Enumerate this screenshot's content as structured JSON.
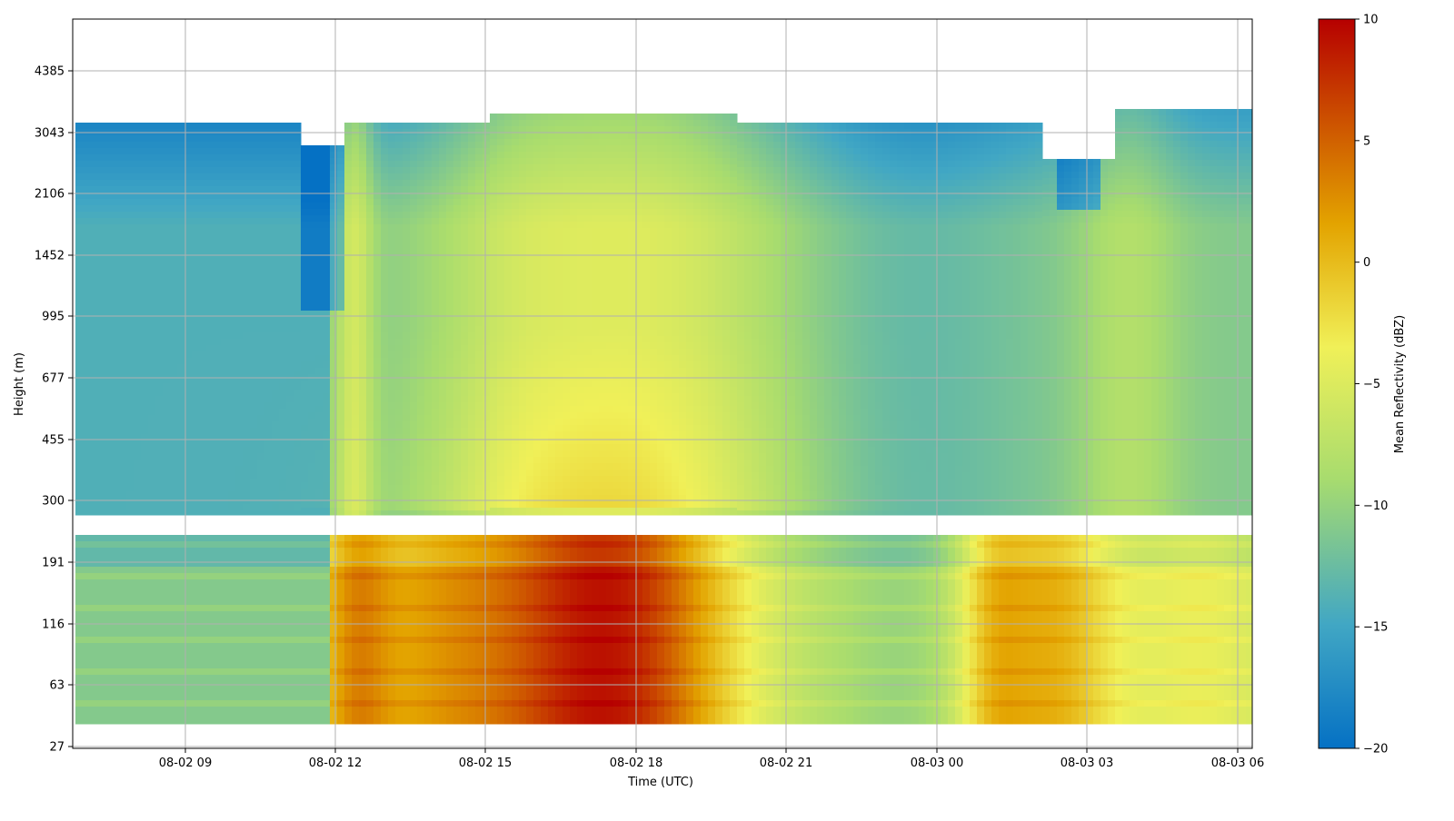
{
  "chart_data": {
    "type": "heatmap",
    "xlabel": "Time (UTC)",
    "ylabel": "Height (m)",
    "x_tick_labels": [
      "08-02 09",
      "08-02 12",
      "08-02 15",
      "08-02 18",
      "08-02 21",
      "08-03 00",
      "08-03 03",
      "08-03 06"
    ],
    "y_tick_labels": [
      "27",
      "63",
      "116",
      "191",
      "300",
      "455",
      "677",
      "995",
      "1452",
      "2106",
      "3043",
      "4385"
    ],
    "x_range": [
      "08-02 06:48",
      "08-03 06:15"
    ],
    "y_range_m": [
      27,
      6000
    ],
    "y_scale": "nonlinear (labelled levels equally spaced)",
    "grid": true,
    "colorbar": {
      "label": "Mean Reflectivity (dBZ)",
      "ticks": [
        "10",
        "5",
        "0",
        "−5",
        "−10",
        "−15",
        "−20"
      ],
      "range_dbz": [
        -20,
        10
      ],
      "colors": [
        "#0571c4",
        "#41a7c4",
        "#a8dc6e",
        "#f0f058",
        "#e3a300",
        "#b60000"
      ]
    },
    "approx_field": {
      "note": "approximate mean reflectivity (dBZ) by time and height; gap between ~240 m and ~250 m",
      "profiles": [
        {
          "time": "08-02 09",
          "lower_dbz": -11,
          "upper_dbz": -14
        },
        {
          "time": "08-02 12",
          "lower_dbz": 2,
          "upper_dbz": -8
        },
        {
          "time": "08-02 15",
          "lower_dbz": 5,
          "upper_dbz": -6
        },
        {
          "time": "08-02 18",
          "lower_dbz": 9,
          "upper_dbz": -4
        },
        {
          "time": "08-02 21",
          "lower_dbz": -5,
          "upper_dbz": -11
        },
        {
          "time": "08-03 00",
          "lower_dbz": -7,
          "upper_dbz": -13
        },
        {
          "time": "08-03 02",
          "lower_dbz": 3,
          "upper_dbz": -12
        },
        {
          "time": "08-03 05",
          "lower_dbz": -4,
          "upper_dbz": -12
        }
      ]
    }
  }
}
